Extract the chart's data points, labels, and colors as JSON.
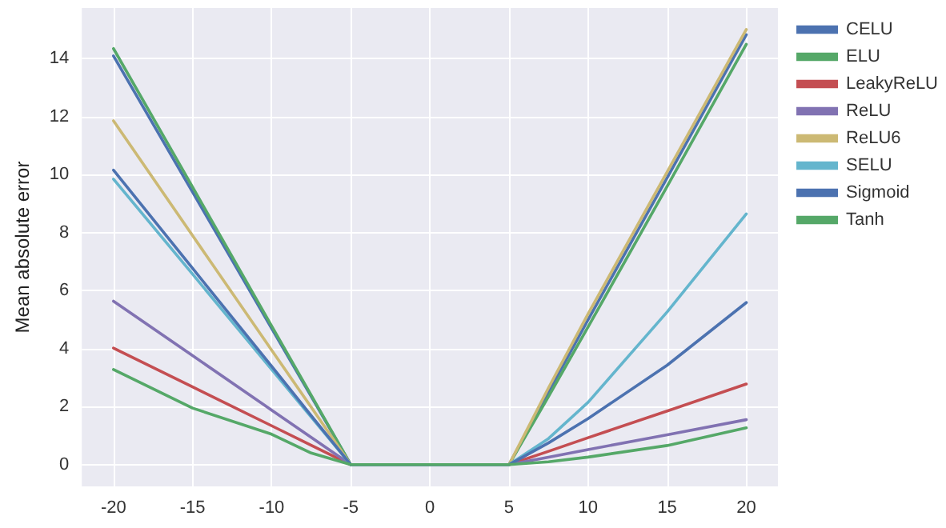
{
  "chart_data": {
    "type": "line",
    "ylabel": "Mean absolute error",
    "x": [
      -20,
      -15,
      -10,
      -7.5,
      -5,
      0,
      5,
      7.5,
      10,
      15,
      20
    ],
    "series": [
      {
        "name": "CELU",
        "color": "#4c72b0",
        "values": [
          14.1,
          9.4,
          4.7,
          2.35,
          0,
          0,
          0,
          2.5,
          5.0,
          9.9,
          14.83
        ]
      },
      {
        "name": "ELU",
        "color": "#55a868",
        "values": [
          14.35,
          9.57,
          4.78,
          2.39,
          0,
          0,
          0,
          2.35,
          4.75,
          9.6,
          14.5
        ]
      },
      {
        "name": "LeakyReLU",
        "color": "#c44e52",
        "values": [
          4.02,
          2.68,
          1.34,
          0.67,
          0,
          0,
          0,
          0.46,
          0.93,
          1.85,
          2.78
        ]
      },
      {
        "name": "ReLU",
        "color": "#8172b2",
        "values": [
          5.64,
          3.76,
          1.88,
          0.94,
          0,
          0,
          0,
          0.26,
          0.52,
          1.03,
          1.55
        ]
      },
      {
        "name": "ReLU6",
        "color": "#ccb974",
        "values": [
          11.86,
          7.9,
          3.95,
          1.98,
          0,
          0,
          0,
          2.65,
          5.2,
          10.1,
          15.01
        ]
      },
      {
        "name": "SELU",
        "color": "#64b5cd",
        "values": [
          9.85,
          6.57,
          3.28,
          1.64,
          0,
          0,
          0,
          0.9,
          2.15,
          5.27,
          8.65
        ]
      },
      {
        "name": "Sigmoid",
        "color": "#4c72b0",
        "values": [
          10.16,
          6.77,
          3.39,
          1.69,
          0,
          0,
          0,
          0.75,
          1.59,
          3.43,
          5.59
        ]
      },
      {
        "name": "Tanh",
        "color": "#55a868",
        "values": [
          3.28,
          1.95,
          1.05,
          0.4,
          0,
          0,
          0,
          0.1,
          0.26,
          0.66,
          1.27
        ]
      }
    ],
    "xlim": [
      -22,
      22
    ],
    "xticks": [
      -20,
      -15,
      -10,
      -5,
      0,
      5,
      10,
      15,
      20
    ],
    "ylim": [
      -0.75,
      15.75
    ],
    "yticks": [
      0,
      2,
      4,
      6,
      8,
      10,
      12,
      14
    ],
    "grid": true,
    "legend": "top right",
    "marker": "none"
  }
}
